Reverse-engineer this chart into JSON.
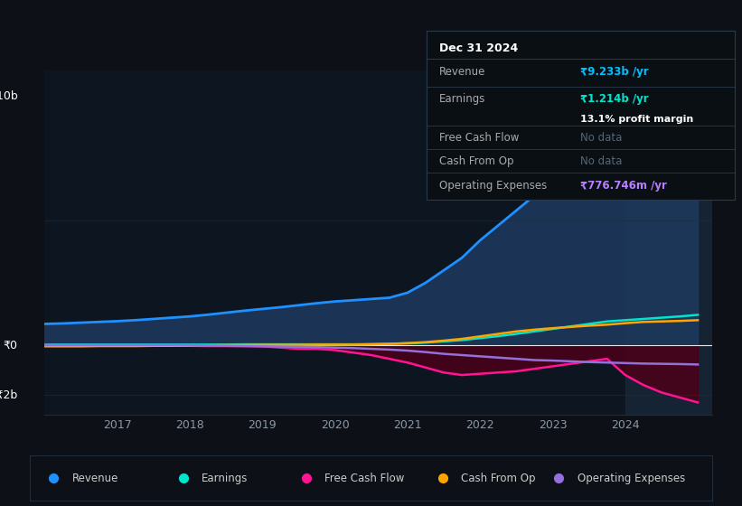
{
  "bg_color": "#0d1117",
  "plot_bg_color": "#0d1520",
  "grid_color": "#1e2d3d",
  "years": [
    2016,
    2016.25,
    2016.5,
    2016.75,
    2017,
    2017.25,
    2017.5,
    2017.75,
    2018,
    2018.25,
    2018.5,
    2018.75,
    2019,
    2019.25,
    2019.5,
    2019.75,
    2020,
    2020.25,
    2020.5,
    2020.75,
    2021,
    2021.25,
    2021.5,
    2021.75,
    2022,
    2022.25,
    2022.5,
    2022.75,
    2023,
    2023.25,
    2023.5,
    2023.75,
    2024,
    2024.25,
    2024.5,
    2024.75,
    2025
  ],
  "revenue": [
    0.85,
    0.87,
    0.9,
    0.93,
    0.96,
    1.0,
    1.05,
    1.1,
    1.15,
    1.22,
    1.3,
    1.38,
    1.45,
    1.52,
    1.6,
    1.68,
    1.75,
    1.8,
    1.85,
    1.9,
    2.1,
    2.5,
    3.0,
    3.5,
    4.2,
    4.8,
    5.4,
    6.0,
    6.6,
    7.0,
    7.4,
    7.8,
    8.2,
    8.6,
    8.9,
    9.1,
    9.233
  ],
  "earnings": [
    0.02,
    0.02,
    0.02,
    0.02,
    0.02,
    0.02,
    0.02,
    0.02,
    0.02,
    0.02,
    0.02,
    0.03,
    0.03,
    0.03,
    0.03,
    0.03,
    0.03,
    0.03,
    0.04,
    0.05,
    0.07,
    0.1,
    0.15,
    0.2,
    0.28,
    0.36,
    0.45,
    0.55,
    0.65,
    0.75,
    0.85,
    0.95,
    1.0,
    1.05,
    1.1,
    1.15,
    1.214
  ],
  "free_cash_flow": [
    0.0,
    -0.02,
    -0.03,
    -0.03,
    -0.03,
    -0.03,
    -0.03,
    -0.03,
    -0.03,
    -0.04,
    -0.04,
    -0.04,
    -0.05,
    -0.1,
    -0.15,
    -0.15,
    -0.2,
    -0.3,
    -0.4,
    -0.55,
    -0.7,
    -0.9,
    -1.1,
    -1.2,
    -1.15,
    -1.1,
    -1.05,
    -0.95,
    -0.85,
    -0.75,
    -0.65,
    -0.55,
    -1.2,
    -1.6,
    -1.9,
    -2.1,
    -2.3
  ],
  "cash_from_op": [
    -0.05,
    -0.05,
    -0.05,
    -0.04,
    -0.04,
    -0.04,
    -0.03,
    -0.03,
    -0.02,
    -0.01,
    0.0,
    0.0,
    0.01,
    0.01,
    0.01,
    0.02,
    0.02,
    0.02,
    0.03,
    0.05,
    0.08,
    0.12,
    0.18,
    0.25,
    0.35,
    0.45,
    0.55,
    0.62,
    0.68,
    0.73,
    0.78,
    0.82,
    0.88,
    0.93,
    0.95,
    0.97,
    1.0
  ],
  "op_expenses": [
    0.0,
    0.0,
    0.0,
    0.0,
    0.0,
    0.0,
    0.0,
    0.0,
    0.0,
    -0.02,
    -0.03,
    -0.04,
    -0.05,
    -0.06,
    -0.07,
    -0.08,
    -0.1,
    -0.12,
    -0.15,
    -0.18,
    -0.22,
    -0.28,
    -0.35,
    -0.4,
    -0.45,
    -0.5,
    -0.55,
    -0.6,
    -0.62,
    -0.65,
    -0.68,
    -0.7,
    -0.72,
    -0.74,
    -0.75,
    -0.76,
    -0.777
  ],
  "revenue_color": "#1e90ff",
  "earnings_color": "#00e5cc",
  "fcf_color": "#ff1493",
  "cashop_color": "#ffa500",
  "opex_color": "#9370db",
  "revenue_fill": "#1e3a5f",
  "fcf_fill": "#4a0018",
  "y_label_10b": "₹10b",
  "y_label_0": "₹0",
  "y_label_neg2b": "-₹2b",
  "ylim": [
    -2.8,
    11.0
  ],
  "xlim": [
    2016.0,
    2025.2
  ],
  "tooltip_date": "Dec 31 2024",
  "tooltip_revenue_label": "Revenue",
  "tooltip_revenue_val": "₹9.233b /yr",
  "tooltip_earnings_label": "Earnings",
  "tooltip_earnings_val": "₹1.214b /yr",
  "tooltip_profit_margin": "13.1% profit margin",
  "tooltip_fcf_label": "Free Cash Flow",
  "tooltip_fcf_val": "No data",
  "tooltip_cashop_label": "Cash From Op",
  "tooltip_cashop_val": "No data",
  "tooltip_opex_label": "Operating Expenses",
  "tooltip_opex_val": "₹776.746m /yr",
  "tooltip_revenue_color": "#00bfff",
  "tooltip_earnings_color": "#00e5cc",
  "tooltip_nodata_color": "#556677",
  "tooltip_opex_color": "#b87fff",
  "legend_labels": [
    "Revenue",
    "Earnings",
    "Free Cash Flow",
    "Cash From Op",
    "Operating Expenses"
  ],
  "legend_colors": [
    "#1e90ff",
    "#00e5cc",
    "#ff1493",
    "#ffa500",
    "#9370db"
  ],
  "xticks": [
    2017,
    2018,
    2019,
    2020,
    2021,
    2022,
    2023,
    2024
  ],
  "xtick_labels": [
    "2017",
    "2018",
    "2019",
    "2020",
    "2021",
    "2022",
    "2023",
    "2024"
  ],
  "highlight_x": 2024.0,
  "divider_color": "#2a3a4a",
  "tooltip_bg": "#0a0f14",
  "tooltip_border": "#2a3a4a"
}
